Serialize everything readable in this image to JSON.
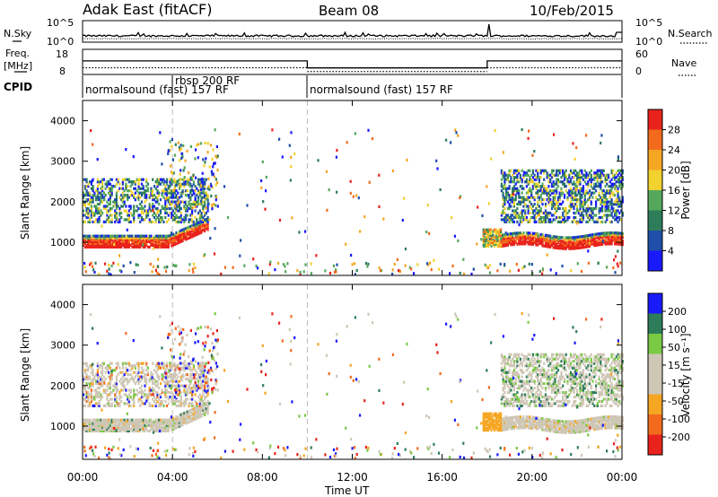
{
  "header": {
    "station": "Adak East (fitACF)",
    "beam": "Beam 08",
    "date": "10/Feb/2015"
  },
  "labels": {
    "nsky": "N.Sky",
    "nsearch": "N.Search",
    "freq_line1": "Freq.",
    "freq_line2": "[MHz]",
    "nave": "Nave",
    "cpid": "CPID",
    "slant_range": "Slant Range [km]",
    "time_ut": "Time UT",
    "power_label": "Power [dB]",
    "velocity_label": "Velocity [m s⁻¹]"
  },
  "noise_axis": {
    "left_top": "10^5",
    "left_bottom": "10^0",
    "right_top": "10^5",
    "right_bottom": "10^0"
  },
  "freq_axis": {
    "left_top": "18",
    "left_bottom": "8",
    "right_top": "60",
    "right_bottom": "0"
  },
  "cpid": [
    {
      "text": "normalsound (fast) 157 RF"
    },
    {
      "text": "rbsp 200 RF"
    },
    {
      "text": "normalsound (fast) 157 RF"
    }
  ],
  "colors": {
    "power": [
      "#1a1aff",
      "#1f4fa8",
      "#2e7d5a",
      "#55a85a",
      "#f2d22e",
      "#f5a623",
      "#f26b1d",
      "#e8231c"
    ],
    "velocity": [
      "#e8231c",
      "#f26b1d",
      "#f5a623",
      "#cfc7b6",
      "#cfc7b6",
      "#7ac943",
      "#2e7d5a",
      "#1a1aff"
    ]
  },
  "chart_data": [
    {
      "type": "line",
      "title": "N.Sky / N.Search",
      "x_range": [
        "00:00",
        "24:00"
      ],
      "log_scale": true,
      "ytick_labels": [
        "10^0",
        "10^5"
      ],
      "series": [
        {
          "name": "N.Sky"
        },
        {
          "name": "N.Search"
        }
      ]
    },
    {
      "type": "line",
      "title": "Freq. / Nave",
      "x_range": [
        "00:00",
        "24:00"
      ],
      "ylabel": "Freq. [MHz]",
      "ylim": [
        8,
        18
      ],
      "y2lim": [
        0,
        60
      ],
      "series": [
        {
          "name": "Freq.",
          "segments": [
            {
              "x": [
                "00:00",
                "10:00"
              ],
              "y": 13.4
            },
            {
              "x": [
                "10:00",
                "18:00"
              ],
              "y": 10.6
            },
            {
              "x": [
                "18:00",
                "24:00"
              ],
              "y": 13.4
            }
          ]
        },
        {
          "name": "Nave",
          "segments": [
            {
              "x": [
                "00:00",
                "10:00"
              ],
              "y": 16
            },
            {
              "x": [
                "10:00",
                "18:00"
              ],
              "y": 7
            },
            {
              "x": [
                "18:00",
                "24:00"
              ],
              "y": 16
            }
          ]
        }
      ]
    },
    {
      "type": "heatmap",
      "title": "Power",
      "xlabel": "Time UT",
      "ylabel": "Slant Range [km]",
      "ylim": [
        180,
        4500
      ],
      "x_ticks": [
        "00:00",
        "04:00",
        "08:00",
        "12:00",
        "16:00",
        "20:00",
        "00:00"
      ],
      "y_ticks": [
        1000,
        2000,
        3000,
        4000
      ],
      "colorbar": {
        "label": "Power [dB]",
        "ticks": [
          4,
          8,
          12,
          16,
          20,
          24,
          28
        ],
        "range": [
          0,
          32
        ]
      },
      "bands": [
        {
          "t": [
            0,
            5.5
          ],
          "r": [
            850,
            1400
          ],
          "level": "high"
        },
        {
          "t": [
            0,
            5.8
          ],
          "r": [
            1500,
            2600
          ],
          "level": "mid"
        },
        {
          "t": [
            17.8,
            24
          ],
          "r": [
            850,
            1500
          ],
          "level": "high"
        },
        {
          "t": [
            18.7,
            24
          ],
          "r": [
            1500,
            2800
          ],
          "level": "mid"
        }
      ]
    },
    {
      "type": "heatmap",
      "title": "Velocity",
      "xlabel": "Time UT",
      "ylabel": "Slant Range [km]",
      "ylim": [
        180,
        4500
      ],
      "x_ticks": [
        "00:00",
        "04:00",
        "08:00",
        "12:00",
        "16:00",
        "20:00",
        "00:00"
      ],
      "y_ticks": [
        1000,
        2000,
        3000,
        4000
      ],
      "colorbar": {
        "label": "Velocity [m s⁻¹]",
        "ticks": [
          -200,
          -100,
          -50,
          -15,
          15,
          50,
          100,
          200
        ]
      }
    }
  ]
}
